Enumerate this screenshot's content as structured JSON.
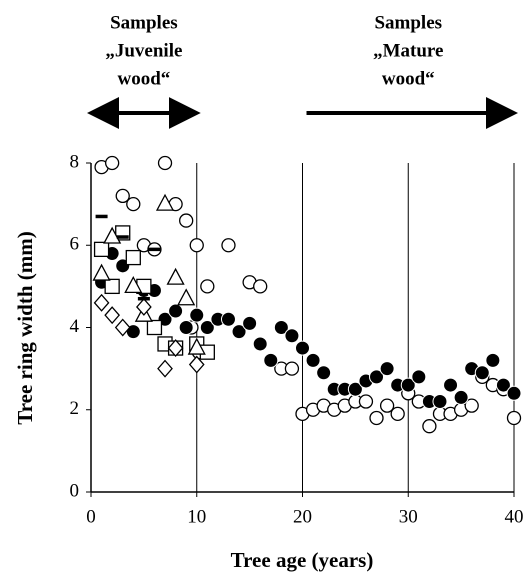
{
  "chart_data": {
    "type": "scatter",
    "xlabel": "Tree age (years)",
    "ylabel": "Tree ring width (mm)",
    "xlim": [
      0,
      40
    ],
    "ylim": [
      0,
      8
    ],
    "xticks": [
      0,
      10,
      20,
      30,
      40
    ],
    "yticks": [
      0,
      2,
      4,
      6,
      8
    ],
    "grid": "x",
    "annotations": [
      {
        "lines": [
          "Samples",
          "„Juvenile",
          "wood“"
        ],
        "arrow_x": [
          0,
          10
        ],
        "arrow_heads": "both"
      },
      {
        "lines": [
          "Samples",
          "„Mature",
          "wood“"
        ],
        "arrow_x": [
          20,
          40
        ],
        "arrow_heads": "end"
      }
    ],
    "series": [
      {
        "marker": "open-circle",
        "color": "#000000",
        "x": [
          1,
          2,
          3,
          4,
          5,
          6,
          7,
          8,
          9,
          10,
          11,
          13,
          15,
          16,
          17,
          18,
          19,
          20,
          21,
          22,
          23,
          24,
          25,
          26,
          27,
          28,
          29,
          30,
          31,
          32,
          33,
          34,
          35,
          36,
          37,
          38,
          39,
          40,
          9.5,
          10.2
        ],
        "values": [
          7.9,
          8.0,
          7.2,
          7.0,
          6.0,
          5.9,
          8.0,
          7.0,
          6.6,
          6.0,
          5.0,
          6.0,
          5.1,
          5.0,
          3.2,
          3.0,
          3.0,
          1.9,
          2.0,
          2.1,
          2.0,
          2.1,
          2.2,
          2.2,
          1.8,
          2.1,
          1.9,
          2.4,
          2.2,
          1.6,
          1.9,
          1.9,
          2.0,
          2.1,
          2.8,
          2.6,
          2.5,
          1.8,
          4.0,
          3.4
        ]
      },
      {
        "marker": "filled-circle",
        "color": "#000000",
        "x": [
          1,
          2,
          3,
          4,
          5,
          6,
          7,
          8,
          9,
          10,
          11,
          12,
          13,
          14,
          15,
          16,
          17,
          18,
          19,
          20,
          21,
          22,
          23,
          24,
          25,
          26,
          27,
          28,
          29,
          30,
          31,
          32,
          33,
          34,
          35,
          36,
          37,
          38,
          39,
          40
        ],
        "values": [
          5.1,
          5.8,
          5.5,
          3.9,
          4.9,
          4.9,
          4.2,
          4.4,
          4.0,
          4.3,
          4.0,
          4.2,
          4.2,
          3.9,
          4.1,
          3.6,
          3.2,
          4.0,
          3.8,
          3.5,
          3.2,
          2.9,
          2.5,
          2.5,
          2.5,
          2.7,
          2.8,
          3.0,
          2.6,
          2.6,
          2.8,
          2.2,
          2.2,
          2.6,
          2.3,
          3.0,
          2.9,
          3.2,
          2.6,
          2.4
        ]
      },
      {
        "marker": "square",
        "color": "#000000",
        "x": [
          1,
          2,
          3,
          4,
          5,
          6,
          7,
          8,
          10,
          11
        ],
        "values": [
          5.9,
          5.0,
          6.3,
          5.7,
          5.0,
          4.0,
          3.6,
          3.5,
          3.6,
          3.4
        ]
      },
      {
        "marker": "triangle",
        "color": "#000000",
        "x": [
          1,
          2,
          4,
          5,
          7,
          8,
          9,
          10
        ],
        "values": [
          5.3,
          6.2,
          5.0,
          4.3,
          7.0,
          5.2,
          4.7,
          3.5
        ]
      },
      {
        "marker": "diamond",
        "color": "#000000",
        "x": [
          1,
          2,
          3,
          5,
          7,
          8,
          10
        ],
        "values": [
          4.6,
          4.3,
          4.0,
          4.5,
          3.0,
          3.5,
          3.1
        ]
      },
      {
        "marker": "dash",
        "color": "#000000",
        "x": [
          1,
          3,
          5,
          6
        ],
        "values": [
          6.7,
          6.2,
          4.7,
          5.9
        ]
      }
    ]
  }
}
